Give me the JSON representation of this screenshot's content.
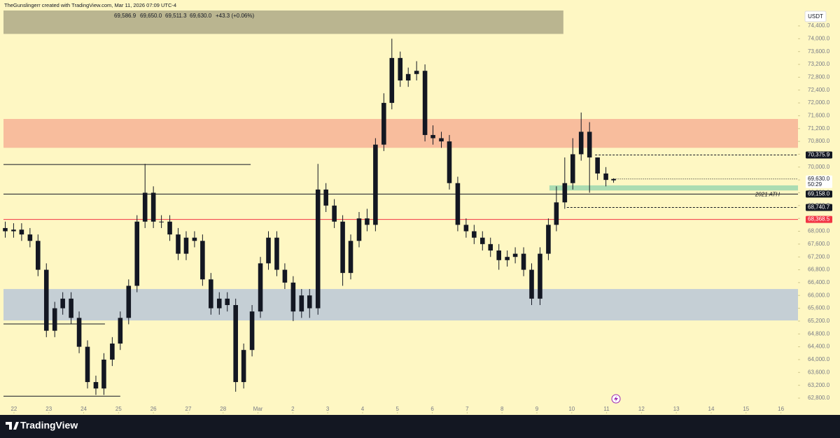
{
  "chart_data": {
    "type": "candlestick",
    "title": "TheGunslingerr created with TradingView.com, Mar 11, 2026 07:09 UTC-4",
    "ohlc_header": {
      "open": "69,586.9",
      "high": "69,650.0",
      "low": "69,511.3",
      "close": "69,630.0",
      "change": "+43.3 (+0.06%)"
    },
    "currency": "USDT",
    "footer": "TradingView",
    "color": "#131722",
    "x": [
      -0.25,
      -0.01,
      0.22,
      0.46,
      0.69,
      0.93,
      1.17,
      1.4,
      1.64,
      1.87,
      2.11,
      2.35,
      2.58,
      2.82,
      3.05,
      3.29,
      3.53,
      3.76,
      4.0,
      4.23,
      4.47,
      4.71,
      4.94,
      5.18,
      5.41,
      5.65,
      5.89,
      6.12,
      6.36,
      6.59,
      6.83,
      7.07,
      7.3,
      7.54,
      7.77,
      8.01,
      8.25,
      8.48,
      8.72,
      8.95,
      9.19,
      9.43,
      9.66,
      9.9,
      10.13,
      10.37,
      10.61,
      10.84,
      11.08,
      11.31,
      11.55,
      11.79,
      12.02,
      12.26,
      12.49,
      12.73,
      12.97,
      13.2,
      13.44,
      13.67,
      13.91,
      14.15,
      14.38,
      14.62,
      14.85,
      15.09,
      15.33,
      15.56,
      15.8,
      16.03,
      16.27,
      16.51,
      16.74,
      16.98,
      17.2
    ],
    "open": [
      68100,
      68000,
      68050,
      67900,
      67700,
      66800,
      64900,
      65600,
      65900,
      65300,
      64400,
      63300,
      63100,
      64000,
      64500,
      65300,
      66300,
      68300,
      69200,
      68300,
      68300,
      67900,
      67300,
      67800,
      67700,
      66500,
      65600,
      65900,
      65700,
      63300,
      64300,
      65500,
      67000,
      67800,
      66800,
      66400,
      65500,
      66000,
      65600,
      69300,
      68800,
      68300,
      66700,
      67700,
      68400,
      68200,
      70700,
      72000,
      73400,
      72700,
      72900,
      73000,
      71000,
      70900,
      70800,
      69500,
      68200,
      68000,
      67800,
      67600,
      67400,
      67100,
      67200,
      67300,
      66800,
      65900,
      67300,
      68200,
      68900,
      69500,
      70400,
      71100,
      70300,
      69800,
      69586.9
    ],
    "high": [
      68300,
      68250,
      68250,
      68100,
      67900,
      67000,
      65800,
      66100,
      66100,
      65500,
      64600,
      63500,
      64200,
      64700,
      65500,
      66500,
      68500,
      70100,
      69400,
      68500,
      68500,
      68100,
      68000,
      68000,
      67900,
      66700,
      66100,
      66100,
      65900,
      64500,
      65700,
      67200,
      68000,
      68000,
      67000,
      66600,
      66200,
      66200,
      70100,
      69500,
      69000,
      68500,
      67900,
      68600,
      68700,
      70900,
      72300,
      74000,
      73600,
      73100,
      73300,
      73200,
      71300,
      71100,
      71000,
      69700,
      68400,
      68200,
      68000,
      67800,
      67600,
      67400,
      67500,
      67500,
      67000,
      67500,
      68400,
      69400,
      70300,
      70900,
      71700,
      71400,
      70300,
      70000,
      69650
    ],
    "low": [
      67800,
      67800,
      67700,
      67500,
      66600,
      64700,
      64700,
      65400,
      65100,
      64200,
      63100,
      62900,
      62900,
      63800,
      64300,
      65100,
      66100,
      68100,
      68100,
      68100,
      67700,
      67100,
      67100,
      67500,
      66300,
      65400,
      65400,
      65500,
      63000,
      63100,
      64100,
      65300,
      66800,
      66600,
      66200,
      65200,
      65300,
      65300,
      65400,
      68600,
      68100,
      66300,
      66500,
      67500,
      68000,
      68000,
      70500,
      71800,
      72500,
      72500,
      72700,
      70800,
      70700,
      70600,
      69300,
      68000,
      67800,
      67600,
      67400,
      67200,
      66800,
      66900,
      67000,
      66600,
      65700,
      65700,
      67100,
      68000,
      68700,
      69300,
      70200,
      69200,
      69600,
      69400,
      69511.3
    ],
    "close": [
      68000,
      68050,
      67900,
      67700,
      66800,
      64900,
      65600,
      65900,
      65300,
      64400,
      63300,
      63100,
      64000,
      64500,
      65300,
      66300,
      68300,
      69200,
      68300,
      68300,
      67900,
      67300,
      67800,
      67700,
      66500,
      65600,
      65900,
      65700,
      63300,
      64300,
      65500,
      67000,
      67800,
      66800,
      66400,
      65500,
      66000,
      65600,
      69300,
      68800,
      68300,
      66700,
      67700,
      68400,
      68200,
      70700,
      72000,
      73400,
      72700,
      72900,
      73000,
      71000,
      70900,
      70800,
      69500,
      68200,
      68000,
      67800,
      67600,
      67400,
      67100,
      67200,
      67300,
      66800,
      65900,
      67300,
      68200,
      68900,
      69500,
      70400,
      71100,
      70300,
      69800,
      69600,
      69630
    ],
    "xlim": [
      -0.3,
      22.49
    ],
    "xticks": [
      {
        "value": 0,
        "label": "22"
      },
      {
        "value": 1,
        "label": "23"
      },
      {
        "value": 2,
        "label": "24"
      },
      {
        "value": 3,
        "label": "25"
      },
      {
        "value": 4,
        "label": "26"
      },
      {
        "value": 5,
        "label": "27"
      },
      {
        "value": 6,
        "label": "28"
      },
      {
        "value": 7,
        "label": "Mar"
      },
      {
        "value": 8,
        "label": "2"
      },
      {
        "value": 9,
        "label": "3"
      },
      {
        "value": 10,
        "label": "4"
      },
      {
        "value": 11,
        "label": "5"
      },
      {
        "value": 12,
        "label": "6"
      },
      {
        "value": 13,
        "label": "7"
      },
      {
        "value": 14,
        "label": "8"
      },
      {
        "value": 15,
        "label": "9"
      },
      {
        "value": 16,
        "label": "10"
      },
      {
        "value": 17,
        "label": "11"
      },
      {
        "value": 18,
        "label": "12"
      },
      {
        "value": 19,
        "label": "13"
      },
      {
        "value": 20,
        "label": "14"
      },
      {
        "value": 21,
        "label": "15"
      },
      {
        "value": 22,
        "label": "16"
      }
    ],
    "ylim": [
      62320,
      74880
    ],
    "yticks": [
      {
        "value": 62800,
        "label": "62,800.0"
      },
      {
        "value": 63200,
        "label": "63,200.0"
      },
      {
        "value": 63600,
        "label": "63,600.0"
      },
      {
        "value": 64000,
        "label": "64,000.0"
      },
      {
        "value": 64400,
        "label": "64,400.0"
      },
      {
        "value": 64800,
        "label": "64,800.0"
      },
      {
        "value": 65200,
        "label": "65,200.0"
      },
      {
        "value": 65600,
        "label": "65,600.0"
      },
      {
        "value": 66000,
        "label": "66,000.0"
      },
      {
        "value": 66400,
        "label": "66,400.0"
      },
      {
        "value": 66800,
        "label": "66,800.0"
      },
      {
        "value": 67200,
        "label": "67,200.0"
      },
      {
        "value": 67600,
        "label": "67,600.0"
      },
      {
        "value": 68000,
        "label": "68,000.0"
      },
      {
        "value": 68400,
        "label": "68,400.0"
      },
      {
        "value": 68800,
        "label": "68,800.0"
      },
      {
        "value": 69200,
        "label": "69,200.0"
      },
      {
        "value": 69600,
        "label": "69,600.0"
      },
      {
        "value": 70000,
        "label": "70,000.0"
      },
      {
        "value": 70400,
        "label": "70,400.0"
      },
      {
        "value": 70800,
        "label": "70,800.0"
      },
      {
        "value": 71200,
        "label": "71,200.0"
      },
      {
        "value": 71600,
        "label": "71,600.0"
      },
      {
        "value": 72000,
        "label": "72,000.0"
      },
      {
        "value": 72400,
        "label": "72,400.0"
      },
      {
        "value": 72800,
        "label": "72,800.0"
      },
      {
        "value": 73200,
        "label": "73,200.0"
      },
      {
        "value": 73600,
        "label": "73,600.0"
      },
      {
        "value": 74000,
        "label": "74,000.0"
      },
      {
        "value": 74400,
        "label": "74,400.0"
      }
    ],
    "banner": {
      "start": -0.3,
      "end": 15.76,
      "from": 74150,
      "to": 74880,
      "color": "#bab590"
    },
    "zones": [
      {
        "from": 70600,
        "to": 71500,
        "color": "#f8bd9d"
      },
      {
        "from": 65220,
        "to": 66200,
        "color": "#c5cfd5"
      },
      {
        "from": 69270,
        "to": 69430,
        "start": 15.36,
        "color": "#abdcb2"
      }
    ],
    "levels": [
      {
        "value": 70375.9,
        "label": "70,375.9",
        "style": "dashed",
        "start": 16.67,
        "color": "#131722"
      },
      {
        "value": 69158,
        "label": "69,158.0",
        "note": "2021 ATH",
        "style": "solid",
        "color": "#131722"
      },
      {
        "value": 68740.7,
        "label": "68,740.7",
        "style": "dashed",
        "start": 15.86,
        "color": "#131722"
      },
      {
        "value": 68368.5,
        "label": "68,368.5",
        "style": "solid",
        "color": "#f23645"
      },
      {
        "value": 70080,
        "style": "solid",
        "end": 6.79,
        "color": "#131722"
      },
      {
        "value": 65110,
        "style": "solid",
        "end": 2.61,
        "color": "#131722"
      },
      {
        "value": 62860,
        "style": "solid",
        "end": 3.05,
        "color": "#131722"
      }
    ],
    "last_price": {
      "value": 69630,
      "label": "69,630.0",
      "countdown": "50:29"
    }
  }
}
